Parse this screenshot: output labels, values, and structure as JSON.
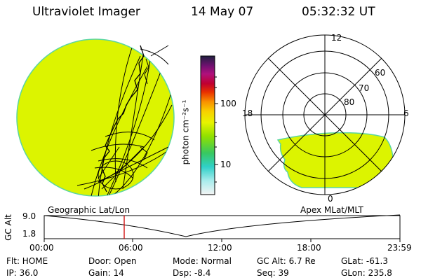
{
  "header": {
    "instrument": "Ultraviolet Imager",
    "date": "14 May 07",
    "time": "05:32:32 UT"
  },
  "colorbar": {
    "unit_label": "photon cm⁻²s⁻¹",
    "ticks": [
      "100",
      "10"
    ]
  },
  "polar_plot": {
    "mlt_labels": [
      "12",
      "18",
      "6",
      "0"
    ],
    "lat_labels": [
      "60",
      "70",
      "80"
    ]
  },
  "altitude_plot": {
    "ylabel": "GC Alt",
    "y_ticks": [
      "9.0",
      "1.8"
    ],
    "left_title": "Geographic Lat/Lon",
    "right_title": "Apex MLat/MLT",
    "x_ticks": [
      "00:00",
      "06:00",
      "12:00",
      "18:00",
      "23:59"
    ]
  },
  "info": {
    "flt": "Flt: HOME",
    "ip": "IP: 36.0",
    "door": "Door: Open",
    "gain": "Gain: 14",
    "mode": "Mode: Normal",
    "dsp": "Dsp:   -8.4",
    "gcalt": "GC Alt: 6.7 Re",
    "seq": "Seq: 39",
    "glat": "GLat: -61.3",
    "glon": "GLon: 235.8"
  },
  "colors": {
    "image_fill": "#dcf400",
    "image_edge": "#5ad6a0",
    "marker": "#d00000"
  }
}
